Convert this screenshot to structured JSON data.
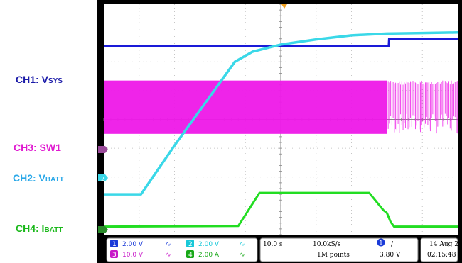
{
  "channel_labels": {
    "ch1": {
      "prefix": "CH1: V",
      "sub": "SYS",
      "color": "#1a1aa8"
    },
    "ch3": {
      "prefix": "CH3: SW1",
      "sub": "",
      "color": "#e01ad0"
    },
    "ch2": {
      "prefix": "CH2: V",
      "sub": "BATT",
      "color": "#2aa8e8"
    },
    "ch4": {
      "prefix": "CH4: I",
      "sub": "BATT",
      "color": "#1ab81a"
    }
  },
  "trace_colors": {
    "ch1": "#1a1ad8",
    "ch2": "#3ad8e8",
    "ch3": "#ee18e8",
    "ch4": "#22dd22"
  },
  "ref_markers": {
    "ch2": "2",
    "ch4": "4"
  },
  "status_bar": {
    "ch1": {
      "num": "1",
      "scale": "2.00 V",
      "color": "#1a3ad8"
    },
    "ch2": {
      "num": "2",
      "scale": "2.00 V",
      "color": "#18c8d8"
    },
    "ch3": {
      "num": "3",
      "scale": "10.0 V",
      "color": "#c818c8"
    },
    "ch4": {
      "num": "4",
      "scale": "2.00 A",
      "color": "#18a818"
    },
    "timebase": "10.0 s",
    "sample_rate": "10.0kS/s",
    "record_length": "1M points",
    "trigger_channel": "1",
    "trigger_slope": "/",
    "trigger_level": "3.80 V",
    "date": "14 Aug 2",
    "time": "02:15:48"
  },
  "chart_data": {
    "type": "line",
    "title": "",
    "xlabel": "",
    "ylabel": "",
    "xlim": [
      0,
      100
    ],
    "ylim": [
      0,
      8
    ],
    "x_unit": "s",
    "y_unit": "div",
    "grid": true,
    "series": [
      {
        "name": "CH1: VSYS",
        "channel": 1,
        "x": [
          0,
          80.5,
          80.6,
          100
        ],
        "y": [
          6.55,
          6.55,
          6.8,
          6.8
        ]
      },
      {
        "name": "CH2: VBATT",
        "channel": 2,
        "x": [
          0,
          10.5,
          20,
          30,
          37,
          42,
          50,
          60,
          70,
          80,
          90,
          100
        ],
        "y": [
          1.4,
          1.4,
          3.1,
          4.8,
          6.0,
          6.35,
          6.6,
          6.78,
          6.92,
          6.98,
          7.0,
          7.02
        ]
      },
      {
        "name": "CH3: SW1",
        "channel": 3,
        "envelope": {
          "x": [
            0,
            80,
            100
          ],
          "top": [
            5.35,
            5.35,
            5.35
          ],
          "bottom": [
            3.5,
            3.5,
            3.5
          ]
        },
        "dense_until": 80
      },
      {
        "name": "CH4: IBATT",
        "channel": 4,
        "x": [
          0,
          38,
          44,
          45,
          75,
          78,
          79,
          80,
          81,
          82,
          100
        ],
        "y": [
          0.28,
          0.3,
          1.45,
          1.45,
          1.45,
          1.0,
          0.85,
          0.75,
          0.45,
          0.28,
          0.28
        ]
      }
    ]
  }
}
